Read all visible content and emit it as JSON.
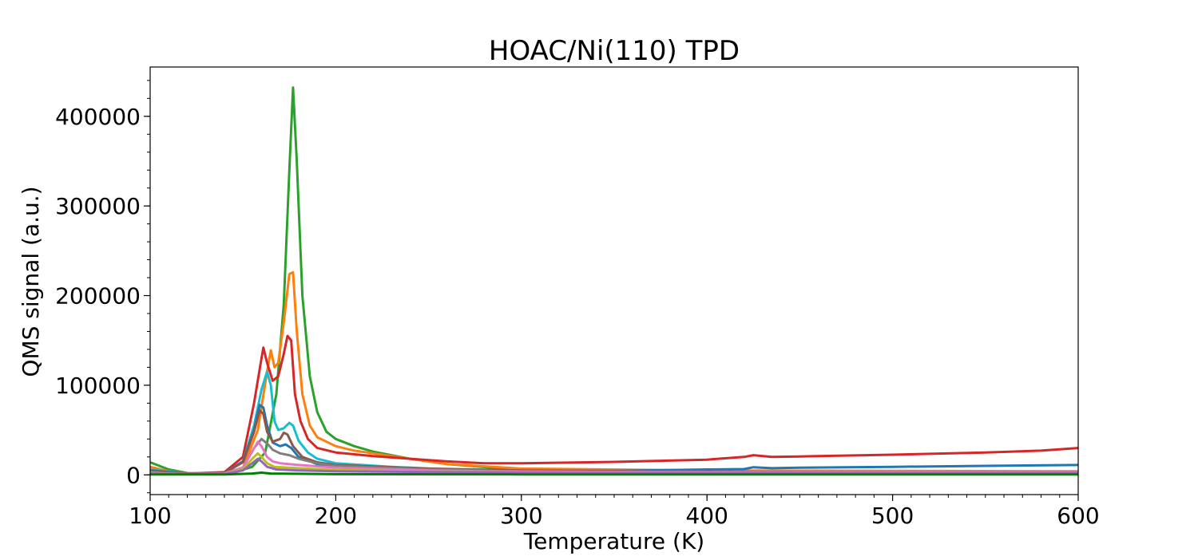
{
  "chart_data": {
    "type": "line",
    "title": "HOAC/Ni(110) TPD",
    "xlabel": "Temperature (K)",
    "ylabel": "QMS signal (a.u.)",
    "xlim": [
      100,
      600
    ],
    "ylim": [
      -22000,
      455000
    ],
    "xticks": [
      100,
      200,
      300,
      400,
      500,
      600
    ],
    "xtick_labels": [
      "100",
      "200",
      "300",
      "400",
      "500",
      "600"
    ],
    "yticks": [
      0,
      100000,
      200000,
      300000,
      400000
    ],
    "ytick_labels": [
      "0",
      "100000",
      "200000",
      "300000",
      "400000"
    ],
    "x_minor_step": 10,
    "y_minor_step": 20000,
    "grid": false,
    "legend": "none",
    "series": [
      {
        "color": "#2ca02c",
        "points": [
          [
            100,
            14000
          ],
          [
            110,
            6000
          ],
          [
            120,
            2000
          ],
          [
            135,
            1000
          ],
          [
            145,
            2500
          ],
          [
            155,
            9000
          ],
          [
            162,
            25000
          ],
          [
            168,
            90000
          ],
          [
            172,
            190000
          ],
          [
            175,
            340000
          ],
          [
            177,
            432000
          ],
          [
            179,
            350000
          ],
          [
            182,
            200000
          ],
          [
            186,
            110000
          ],
          [
            190,
            70000
          ],
          [
            195,
            48000
          ],
          [
            200,
            40000
          ],
          [
            210,
            32000
          ],
          [
            220,
            26000
          ],
          [
            240,
            18000
          ],
          [
            260,
            12000
          ],
          [
            290,
            7000
          ],
          [
            320,
            5000
          ],
          [
            400,
            3000
          ],
          [
            500,
            2500
          ],
          [
            600,
            2000
          ]
        ]
      },
      {
        "color": "#ff7f0e",
        "points": [
          [
            100,
            9000
          ],
          [
            110,
            4000
          ],
          [
            120,
            1500
          ],
          [
            140,
            2000
          ],
          [
            150,
            8000
          ],
          [
            158,
            50000
          ],
          [
            163,
            115000
          ],
          [
            165,
            139000
          ],
          [
            167,
            120000
          ],
          [
            169,
            125000
          ],
          [
            172,
            170000
          ],
          [
            175,
            224000
          ],
          [
            177,
            226000
          ],
          [
            179,
            160000
          ],
          [
            182,
            90000
          ],
          [
            186,
            55000
          ],
          [
            190,
            42000
          ],
          [
            200,
            32000
          ],
          [
            210,
            27000
          ],
          [
            220,
            24000
          ],
          [
            240,
            18000
          ],
          [
            260,
            12000
          ],
          [
            300,
            7000
          ],
          [
            400,
            5000
          ],
          [
            500,
            4500
          ],
          [
            600,
            4000
          ]
        ]
      },
      {
        "color": "#d62728",
        "points": [
          [
            100,
            3000
          ],
          [
            120,
            1500
          ],
          [
            140,
            3000
          ],
          [
            150,
            20000
          ],
          [
            156,
            80000
          ],
          [
            160,
            130000
          ],
          [
            161,
            142000
          ],
          [
            163,
            125000
          ],
          [
            166,
            105000
          ],
          [
            169,
            110000
          ],
          [
            172,
            135000
          ],
          [
            174,
            155000
          ],
          [
            176,
            150000
          ],
          [
            178,
            90000
          ],
          [
            181,
            60000
          ],
          [
            185,
            40000
          ],
          [
            190,
            30000
          ],
          [
            200,
            25000
          ],
          [
            220,
            21000
          ],
          [
            240,
            18000
          ],
          [
            260,
            15000
          ],
          [
            280,
            13000
          ],
          [
            300,
            13000
          ],
          [
            350,
            14500
          ],
          [
            400,
            17000
          ],
          [
            420,
            20000
          ],
          [
            425,
            22000
          ],
          [
            435,
            20000
          ],
          [
            450,
            20500
          ],
          [
            500,
            22500
          ],
          [
            550,
            25000
          ],
          [
            580,
            27000
          ],
          [
            600,
            30000
          ]
        ]
      },
      {
        "color": "#17becf",
        "points": [
          [
            100,
            6000
          ],
          [
            120,
            1500
          ],
          [
            140,
            2000
          ],
          [
            150,
            15000
          ],
          [
            156,
            55000
          ],
          [
            160,
            95000
          ],
          [
            163,
            115000
          ],
          [
            165,
            100000
          ],
          [
            167,
            60000
          ],
          [
            169,
            50000
          ],
          [
            172,
            52000
          ],
          [
            175,
            58000
          ],
          [
            177,
            55000
          ],
          [
            180,
            38000
          ],
          [
            185,
            25000
          ],
          [
            190,
            18000
          ],
          [
            200,
            13000
          ],
          [
            230,
            9000
          ],
          [
            260,
            6000
          ],
          [
            300,
            3500
          ],
          [
            400,
            2500
          ],
          [
            500,
            2000
          ],
          [
            600,
            2000
          ]
        ]
      },
      {
        "color": "#1f77b4",
        "points": [
          [
            100,
            5000
          ],
          [
            120,
            1500
          ],
          [
            140,
            2000
          ],
          [
            150,
            15000
          ],
          [
            156,
            50000
          ],
          [
            159,
            78000
          ],
          [
            161,
            75000
          ],
          [
            163,
            55000
          ],
          [
            166,
            36000
          ],
          [
            170,
            32000
          ],
          [
            173,
            34000
          ],
          [
            176,
            30000
          ],
          [
            180,
            20000
          ],
          [
            190,
            12000
          ],
          [
            200,
            9000
          ],
          [
            250,
            6000
          ],
          [
            300,
            4500
          ],
          [
            350,
            4500
          ],
          [
            400,
            6000
          ],
          [
            420,
            6500
          ],
          [
            425,
            8500
          ],
          [
            435,
            7500
          ],
          [
            450,
            8000
          ],
          [
            500,
            9000
          ],
          [
            550,
            10000
          ],
          [
            600,
            11000
          ]
        ]
      },
      {
        "color": "#8c564b",
        "points": [
          [
            100,
            4000
          ],
          [
            120,
            1500
          ],
          [
            140,
            2000
          ],
          [
            150,
            14000
          ],
          [
            156,
            48000
          ],
          [
            159,
            72000
          ],
          [
            161,
            68000
          ],
          [
            163,
            48000
          ],
          [
            166,
            37000
          ],
          [
            170,
            40000
          ],
          [
            172,
            47000
          ],
          [
            174,
            45000
          ],
          [
            177,
            32000
          ],
          [
            182,
            20000
          ],
          [
            190,
            14000
          ],
          [
            200,
            11000
          ],
          [
            250,
            7000
          ],
          [
            300,
            5000
          ],
          [
            400,
            3500
          ],
          [
            500,
            3000
          ],
          [
            600,
            3000
          ]
        ]
      },
      {
        "color": "#7f7f7f",
        "points": [
          [
            100,
            3000
          ],
          [
            120,
            1000
          ],
          [
            140,
            1500
          ],
          [
            150,
            8000
          ],
          [
            156,
            30000
          ],
          [
            160,
            40000
          ],
          [
            163,
            35000
          ],
          [
            166,
            28000
          ],
          [
            170,
            24000
          ],
          [
            175,
            22000
          ],
          [
            180,
            18000
          ],
          [
            190,
            13000
          ],
          [
            200,
            10000
          ],
          [
            250,
            6000
          ],
          [
            300,
            4000
          ],
          [
            400,
            3000
          ],
          [
            500,
            3000
          ],
          [
            600,
            3000
          ]
        ]
      },
      {
        "color": "#e377c2",
        "points": [
          [
            100,
            2000
          ],
          [
            120,
            1000
          ],
          [
            140,
            1500
          ],
          [
            150,
            8000
          ],
          [
            155,
            26000
          ],
          [
            158,
            37000
          ],
          [
            160,
            32000
          ],
          [
            163,
            20000
          ],
          [
            166,
            15000
          ],
          [
            170,
            13000
          ],
          [
            180,
            11000
          ],
          [
            200,
            8000
          ],
          [
            250,
            5000
          ],
          [
            300,
            3500
          ],
          [
            400,
            3000
          ],
          [
            500,
            3000
          ],
          [
            600,
            3000
          ]
        ]
      },
      {
        "color": "#bcbd22",
        "points": [
          [
            100,
            2000
          ],
          [
            120,
            800
          ],
          [
            140,
            1000
          ],
          [
            150,
            6000
          ],
          [
            155,
            18000
          ],
          [
            158,
            24000
          ],
          [
            160,
            20000
          ],
          [
            163,
            13000
          ],
          [
            167,
            9000
          ],
          [
            175,
            8000
          ],
          [
            190,
            6500
          ],
          [
            200,
            5500
          ],
          [
            250,
            3500
          ],
          [
            300,
            2500
          ],
          [
            400,
            2000
          ],
          [
            500,
            2000
          ],
          [
            600,
            2000
          ]
        ]
      },
      {
        "color": "#9467bd",
        "points": [
          [
            100,
            1500
          ],
          [
            120,
            800
          ],
          [
            140,
            1000
          ],
          [
            150,
            5000
          ],
          [
            155,
            13000
          ],
          [
            158,
            18000
          ],
          [
            160,
            15000
          ],
          [
            163,
            9000
          ],
          [
            168,
            6000
          ],
          [
            180,
            5000
          ],
          [
            200,
            4000
          ],
          [
            300,
            2500
          ],
          [
            400,
            2000
          ],
          [
            500,
            2000
          ],
          [
            600,
            2000
          ]
        ]
      },
      {
        "color": "#008000",
        "points": [
          [
            100,
            500
          ],
          [
            140,
            500
          ],
          [
            155,
            1500
          ],
          [
            160,
            2500
          ],
          [
            165,
            1500
          ],
          [
            200,
            800
          ],
          [
            300,
            500
          ],
          [
            400,
            500
          ],
          [
            500,
            500
          ],
          [
            600,
            500
          ]
        ]
      }
    ]
  }
}
